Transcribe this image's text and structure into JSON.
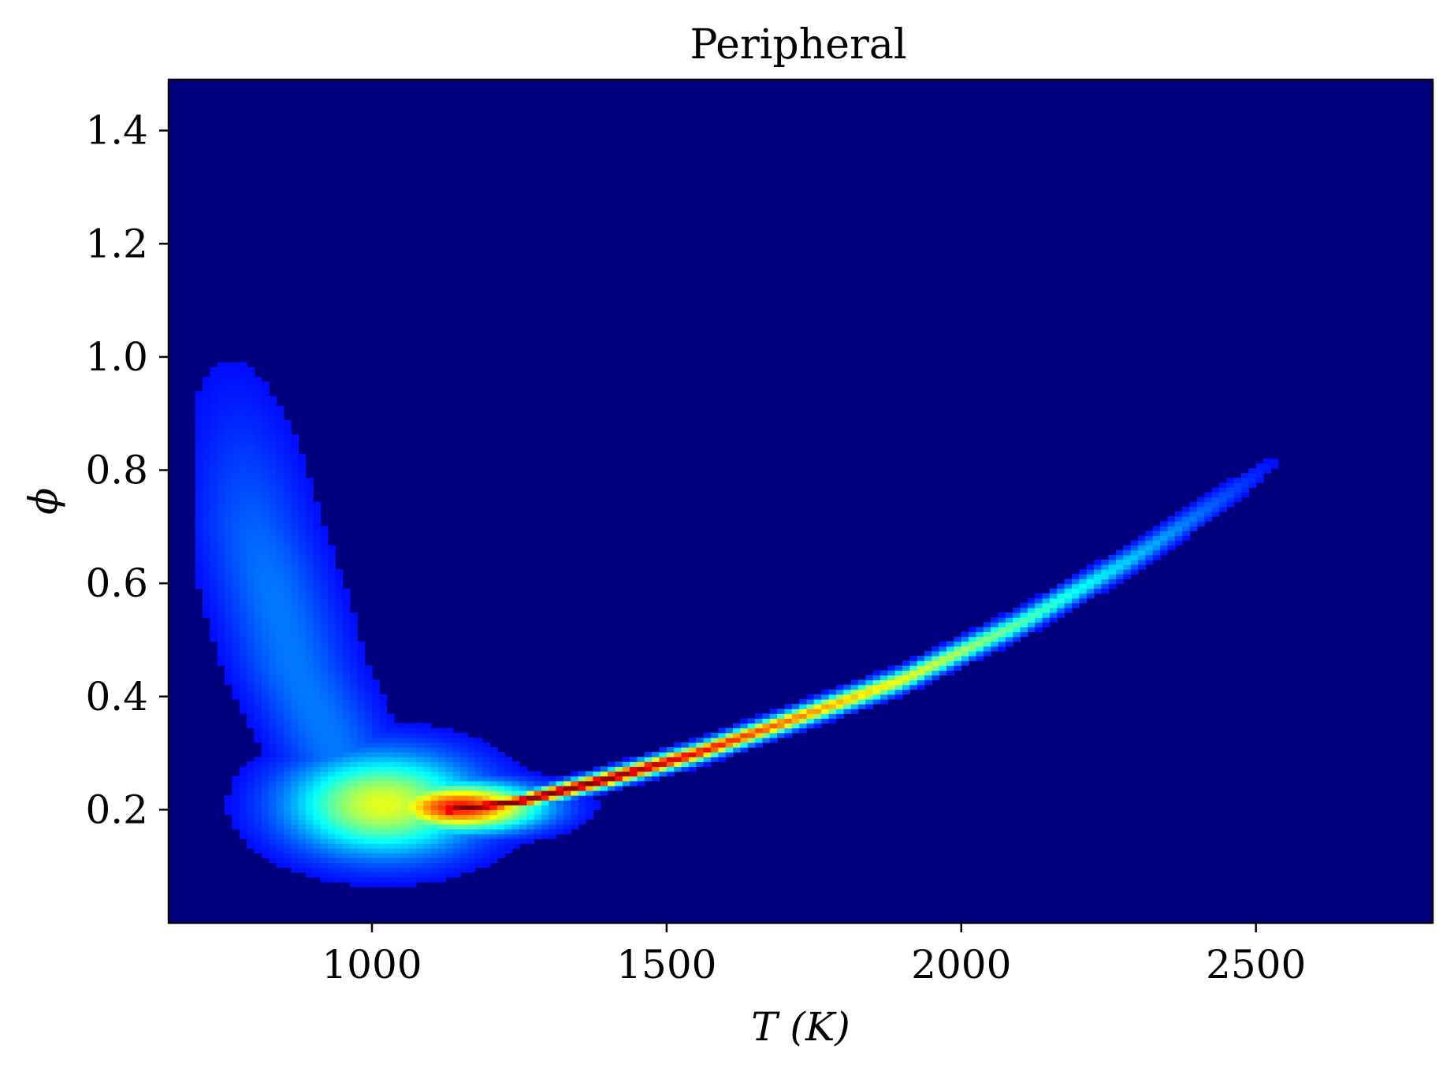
{
  "chart_data": {
    "type": "heatmap",
    "title": "Peripheral",
    "xlabel": "T (K)",
    "ylabel": "ϕ",
    "xlim": [
      655,
      2800
    ],
    "ylim": [
      0.0,
      1.49
    ],
    "xticks": [
      1000,
      1500,
      2000,
      2500
    ],
    "xtick_labels": [
      "1000",
      "1500",
      "2000",
      "2500"
    ],
    "yticks": [
      0.2,
      0.4,
      0.6,
      0.8,
      1.0,
      1.2,
      1.4
    ],
    "ytick_labels": [
      "0.2",
      "0.4",
      "0.6",
      "0.8",
      "1.0",
      "1.2",
      "1.4"
    ],
    "colormap": "jet",
    "grid": false,
    "legend": "none",
    "background_color": "#00007f",
    "features": [
      {
        "name": "ridge",
        "description_points": [
          {
            "x": 1130,
            "y": 0.2
          },
          {
            "x": 1250,
            "y": 0.215
          },
          {
            "x": 1400,
            "y": 0.255
          },
          {
            "x": 1550,
            "y": 0.3
          },
          {
            "x": 1700,
            "y": 0.355
          },
          {
            "x": 1900,
            "y": 0.43
          },
          {
            "x": 2100,
            "y": 0.53
          },
          {
            "x": 2300,
            "y": 0.65
          },
          {
            "x": 2500,
            "y": 0.79
          },
          {
            "x": 2600,
            "y": 0.87
          }
        ],
        "peak_intensity": 1.0
      },
      {
        "name": "hotspot",
        "center": {
          "x": 1150,
          "y": 0.205
        },
        "peak_intensity": 0.85
      },
      {
        "name": "diffuse-blob",
        "center": {
          "x": 1020,
          "y": 0.21
        },
        "peak_intensity": 0.55
      },
      {
        "name": "faint-tail",
        "description_points": [
          {
            "x": 760,
            "y": 1.0
          },
          {
            "x": 800,
            "y": 0.7
          },
          {
            "x": 870,
            "y": 0.45
          },
          {
            "x": 950,
            "y": 0.28
          }
        ],
        "peak_intensity": 0.15
      }
    ]
  }
}
